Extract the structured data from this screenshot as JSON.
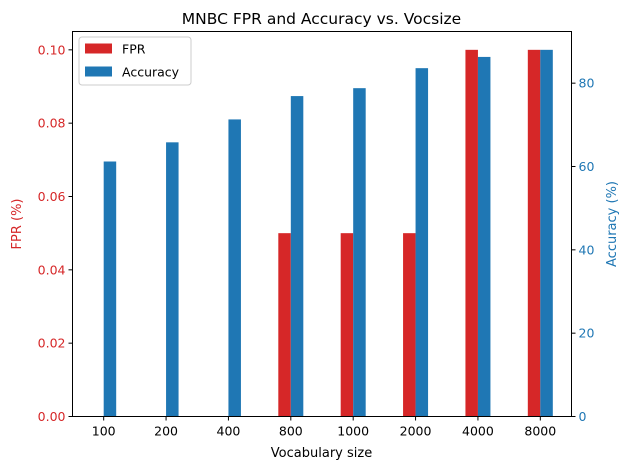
{
  "chart_data": {
    "type": "bar",
    "title": "MNBC FPR and Accuracy vs. Vocsize",
    "xlabel": "Vocabulary size",
    "categories": [
      "100",
      "200",
      "400",
      "800",
      "1000",
      "2000",
      "4000",
      "8000"
    ],
    "axes": {
      "left": {
        "label": "FPR (%)",
        "ylim": [
          0,
          0.105
        ],
        "ticks": [
          0.0,
          0.02,
          0.04,
          0.06,
          0.08,
          0.1
        ],
        "tick_labels": [
          "0.00",
          "0.02",
          "0.04",
          "0.06",
          "0.08",
          "0.10"
        ],
        "color": "#d62728"
      },
      "right": {
        "label": "Accuracy (%)",
        "ylim": [
          0,
          92.4
        ],
        "ticks": [
          0,
          20,
          40,
          60,
          80
        ],
        "tick_labels": [
          "0",
          "20",
          "40",
          "60",
          "80"
        ],
        "color": "#1f77b4"
      }
    },
    "series": [
      {
        "name": "FPR",
        "axis": "left",
        "color": "#d62728",
        "values": [
          0,
          0,
          0,
          0.05,
          0.05,
          0.05,
          0.1,
          0.1
        ]
      },
      {
        "name": "Accuracy",
        "axis": "right",
        "color": "#1f77b4",
        "values": [
          61.2,
          65.8,
          71.3,
          76.9,
          78.8,
          83.6,
          86.3,
          88.0
        ]
      }
    ],
    "legend": {
      "position": "top-left"
    },
    "grid": false
  }
}
